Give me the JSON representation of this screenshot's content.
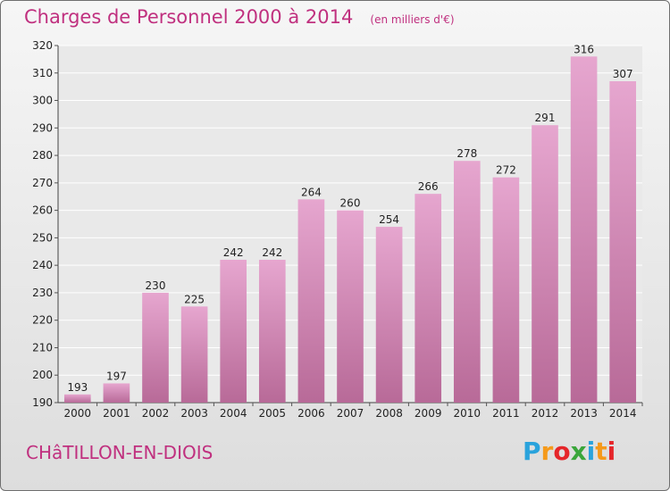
{
  "header": {
    "title": "Charges de Personnel 2000 à 2014",
    "unit": "(en milliers d'€)"
  },
  "footer": {
    "commune": "CHâTILLON-EN-DIOIS",
    "logo_letters": [
      "P",
      "r",
      "o",
      "x",
      "i",
      "t",
      "i"
    ],
    "logo_colors": [
      "#2aa3dc",
      "#f59a1b",
      "#e5262a",
      "#3aa63a",
      "#2aa3dc",
      "#f59a1b",
      "#e5262a"
    ]
  },
  "colors": {
    "bar_top": "#e6a6cf",
    "bar_bottom": "#b86a98",
    "accent": "#c0307f"
  },
  "chart_data": {
    "type": "bar",
    "title": "Charges de Personnel 2000 à 2014",
    "subtitle": "(en milliers d'€)",
    "xlabel": "",
    "ylabel": "",
    "categories": [
      "2000",
      "2001",
      "2002",
      "2003",
      "2004",
      "2005",
      "2006",
      "2007",
      "2008",
      "2009",
      "2010",
      "2011",
      "2012",
      "2013",
      "2014"
    ],
    "values": [
      193,
      197,
      230,
      225,
      242,
      242,
      264,
      260,
      254,
      266,
      278,
      272,
      291,
      316,
      307
    ],
    "ylim": [
      190,
      320
    ],
    "yticks": [
      190,
      200,
      210,
      220,
      230,
      240,
      250,
      260,
      270,
      280,
      290,
      300,
      310,
      320
    ],
    "grid": true,
    "legend": "none"
  }
}
